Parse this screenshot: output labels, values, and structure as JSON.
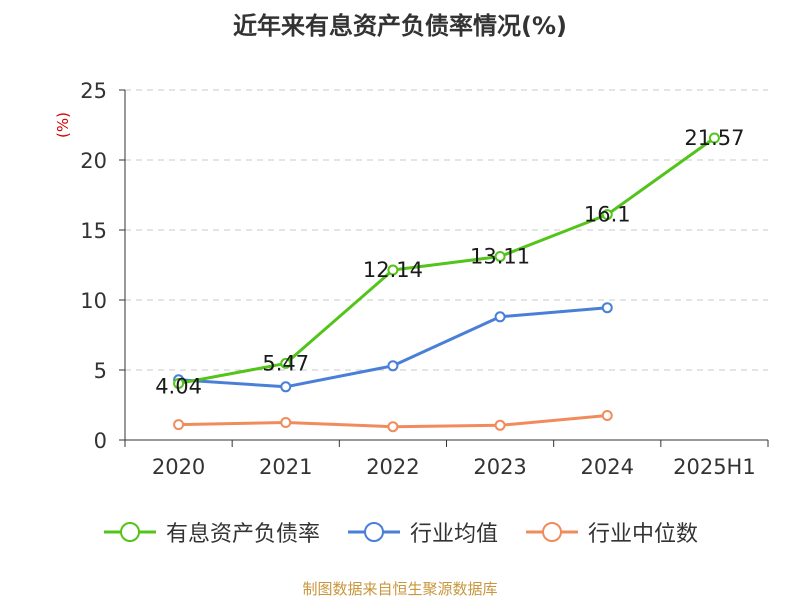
{
  "title": "近年来有息资产负债率情况(%)",
  "source_note": "制图数据来自恒生聚源数据库",
  "chart_data": {
    "type": "line",
    "title": "近年来有息资产负债率情况(%)",
    "ylabel": "(%)",
    "xlabel": "",
    "categories": [
      "2020",
      "2021",
      "2022",
      "2023",
      "2024",
      "2025H1"
    ],
    "ylim": [
      0,
      25
    ],
    "yticks": [
      0,
      5,
      10,
      15,
      20,
      25
    ],
    "grid": true,
    "legend_position": "bottom",
    "series": [
      {
        "name": "有息资产负债率",
        "color": "#52c41a",
        "values": [
          4.04,
          5.47,
          12.14,
          13.11,
          16.1,
          21.57
        ],
        "labels": [
          "4.04",
          "5.47",
          "12.14",
          "13.11",
          "16.1",
          "21.57"
        ]
      },
      {
        "name": "行业均值",
        "color": "#4a7fd8",
        "values": [
          4.3,
          3.8,
          5.3,
          8.8,
          9.45,
          null
        ]
      },
      {
        "name": "行业中位数",
        "color": "#f28b5c",
        "values": [
          1.1,
          1.25,
          0.95,
          1.05,
          1.75,
          null
        ]
      }
    ]
  }
}
